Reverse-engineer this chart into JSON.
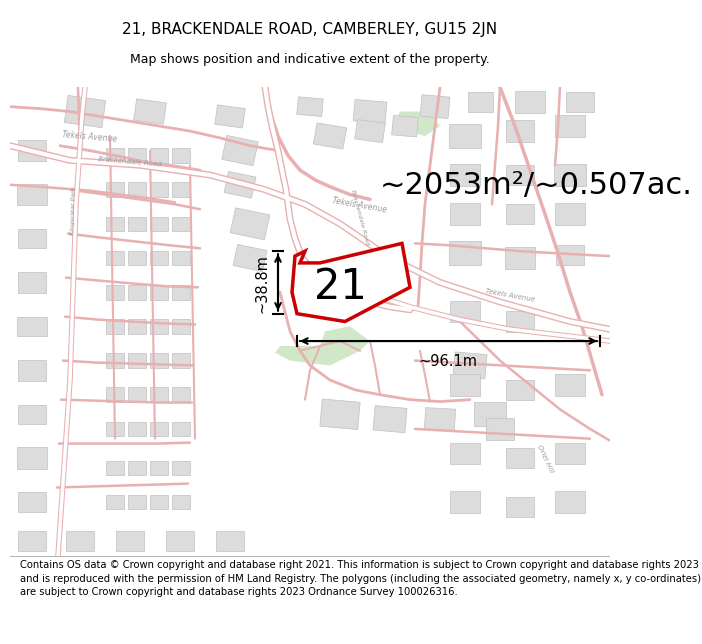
{
  "title_line1": "21, BRACKENDALE ROAD, CAMBERLEY, GU15 2JN",
  "title_line2": "Map shows position and indicative extent of the property.",
  "area_text": "~2053m²/~0.507ac.",
  "label_number": "21",
  "dim_width": "~96.1m",
  "dim_height": "~38.8m",
  "footer_text": "Contains OS data © Crown copyright and database right 2021. This information is subject to Crown copyright and database rights 2023 and is reproduced with the permission of HM Land Registry. The polygons (including the associated geometry, namely x, y co-ordinates) are subject to Crown copyright and database rights 2023 Ordnance Survey 100026316.",
  "map_bg": "#f5f0eb",
  "road_fill": "#ffffff",
  "road_outline": "#e8b0b0",
  "building_fill": "#dcdcdc",
  "building_edge": "#c0c0c0",
  "green_fill": "#d0e8c8",
  "poly_color": "#cc0000",
  "poly_fill": "#ffffff",
  "road_label_color": "#999999",
  "title_fs": 11,
  "subtitle_fs": 9,
  "area_fs": 22,
  "num_fs": 30,
  "dim_fs": 10.5,
  "footer_fs": 7.2,
  "road_lw_main": 3.5,
  "road_lw_minor": 1.5,
  "road_lw_thin": 0.8
}
